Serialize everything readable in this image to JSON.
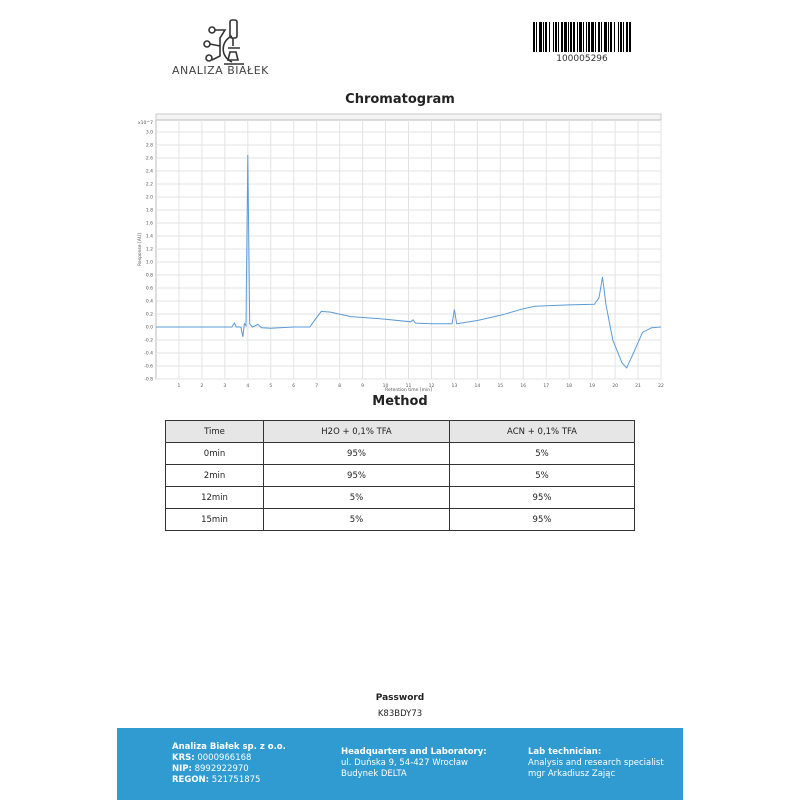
{
  "header": {
    "company_logo_text": "ANALIZA BIAŁEK",
    "barcode_number": "100005296"
  },
  "chromatogram": {
    "title": "Chromatogram"
  },
  "chart_data": {
    "type": "line",
    "title": "Chromatogram",
    "xlabel": "Retention time [min]",
    "ylabel": "Response [AU]",
    "y_multiplier_label": "x10^7",
    "xlim": [
      0,
      22
    ],
    "ylim": [
      -0.8,
      3.0
    ],
    "x_ticks": [
      1,
      2,
      3,
      4,
      5,
      6,
      7,
      8,
      9,
      10,
      11,
      12,
      13,
      14,
      15,
      16,
      17,
      18,
      19,
      20,
      21,
      22
    ],
    "y_ticks": [
      "3.0",
      "2.8",
      "2.6",
      "2.4",
      "2.2",
      "2.0",
      "1.8",
      "1.6",
      "1.4",
      "1.2",
      "1.0",
      "0.8",
      "0.6",
      "0.4",
      "0.2",
      "0.0",
      "-0.2",
      "-0.4",
      "-0.6",
      "-0.8"
    ],
    "grid": true,
    "series": [
      {
        "color": "#5b9bd5",
        "x": [
          0,
          1,
          2,
          3,
          3.3,
          3.42,
          3.5,
          3.7,
          3.78,
          3.85,
          3.92,
          4.0,
          4.08,
          4.2,
          4.45,
          4.52,
          4.6,
          5.0,
          6.0,
          6.7,
          7.0,
          7.2,
          7.6,
          8.5,
          10,
          11.1,
          11.2,
          11.3,
          12,
          12.9,
          13.0,
          13.1,
          14,
          15,
          16,
          16.5,
          18,
          19.1,
          19.3,
          19.45,
          19.6,
          19.9,
          20.3,
          20.5,
          20.8,
          21.2,
          21.6,
          22
        ],
        "y": [
          0,
          0,
          0,
          0,
          0,
          0.06,
          0,
          0,
          -0.15,
          0.05,
          0.02,
          2.65,
          0.05,
          0,
          0.04,
          0.01,
          -0.01,
          -0.02,
          0,
          0,
          0.15,
          0.24,
          0.23,
          0.16,
          0.12,
          0.08,
          0.11,
          0.06,
          0.05,
          0.05,
          0.27,
          0.05,
          0.1,
          0.18,
          0.28,
          0.32,
          0.34,
          0.35,
          0.45,
          0.77,
          0.35,
          -0.2,
          -0.55,
          -0.63,
          -0.4,
          -0.08,
          -0.01,
          0.0
        ]
      }
    ]
  },
  "method": {
    "title": "Method",
    "columns": [
      "Time",
      "H2O + 0,1% TFA",
      "ACN + 0,1% TFA"
    ],
    "rows": [
      [
        "0min",
        "95%",
        "5%"
      ],
      [
        "2min",
        "95%",
        "5%"
      ],
      [
        "12min",
        "5%",
        "95%"
      ],
      [
        "15min",
        "5%",
        "95%"
      ]
    ]
  },
  "password": {
    "label": "Password",
    "value": "K83BDY73"
  },
  "footer": {
    "company": "Analiza Białek sp. z o.o.",
    "krs_label": "KRS:",
    "krs": "0000966168",
    "nip_label": "NIP:",
    "nip": "8992922970",
    "regon_label": "REGON:",
    "regon": "521751875",
    "hq_title": "Headquarters and Laboratory:",
    "hq_line1": "ul. Duńska 9, 54-427 Wrocław",
    "hq_line2": "Budynek DELTA",
    "tech_title": "Lab technician:",
    "tech_line1": "Analysis and research specialist",
    "tech_line2": "mgr Arkadiusz Zając",
    "background_color": "#2f9bd1"
  }
}
